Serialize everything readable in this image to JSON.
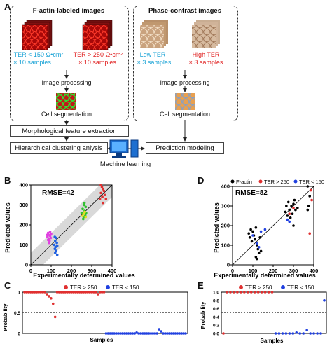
{
  "panel_a": {
    "letter": "A",
    "left_box": {
      "title": "F-actin-labeled images",
      "low_label": "TER < 150 Ω•cm²",
      "low_count": "× 10 samples",
      "high_label": "TER > 250 Ω•cm²",
      "high_count": "× 10 samples",
      "processing": "Image processing",
      "segmentation": "Cell segmentation"
    },
    "right_box": {
      "title": "Phase-contrast images",
      "low_label": "Low TER",
      "low_count": "× 3 samples",
      "high_label": "High TER",
      "high_count": "× 3 samples",
      "processing": "Image processing",
      "segmentation": "Cell segmentation"
    },
    "morph": "Morphological feature extraction",
    "cluster": "Hierarchical clustering anlysis",
    "prediction": "Prediction modeling",
    "ml": "Machine learning",
    "colors": {
      "blue_text": "#1aa3d6",
      "red_text": "#e02020",
      "actin_red": "#c81010",
      "phase_tan": "#c8a07a"
    }
  },
  "panel_b": {
    "letter": "B",
    "rmse": "RMSE=42",
    "xlabel": "Experimentally determined values",
    "ylabel": "Predicted values"
  },
  "panel_c": {
    "letter": "C",
    "legend_red": "TER > 250",
    "legend_blue": "TER < 150",
    "xlabel": "Samples",
    "ylabel": "Probability"
  },
  "panel_d": {
    "letter": "D",
    "legend_black": "F-actin",
    "legend_red": "TER > 250",
    "legend_blue": "TER < 150",
    "rmse": "RMSE=82",
    "xlabel": "Experimentally determined values",
    "ylabel": "Predicted values"
  },
  "panel_e": {
    "letter": "E",
    "legend_red": "TER > 250",
    "legend_blue": "TER < 150",
    "xlabel": "Samples",
    "ylabel": "Probability"
  },
  "chart_data": [
    {
      "type": "scatter",
      "panel": "B",
      "xlim": [
        0,
        400
      ],
      "ylim": [
        0,
        400
      ],
      "xticks": [
        0,
        100,
        200,
        300,
        400
      ],
      "yticks": [
        0,
        100,
        200,
        300,
        400
      ],
      "series": [
        {
          "color": "#e040e0",
          "points": [
            [
              80,
              150
            ],
            [
              82,
              140
            ],
            [
              85,
              160
            ],
            [
              88,
              130
            ],
            [
              90,
              150
            ],
            [
              92,
              120
            ],
            [
              95,
              145
            ],
            [
              98,
              135
            ],
            [
              100,
              155
            ],
            [
              85,
              125
            ],
            [
              90,
              110
            ],
            [
              95,
              165
            ]
          ]
        },
        {
          "color": "#2060e0",
          "points": [
            [
              115,
              100
            ],
            [
              118,
              80
            ],
            [
              120,
              60
            ],
            [
              122,
              90
            ],
            [
              125,
              70
            ],
            [
              128,
              110
            ],
            [
              130,
              50
            ],
            [
              120,
              120
            ],
            [
              125,
              135
            ],
            [
              118,
              140
            ],
            [
              130,
              95
            ]
          ]
        },
        {
          "color": "#30c030",
          "points": [
            [
              250,
              260
            ],
            [
              255,
              280
            ],
            [
              260,
              240
            ],
            [
              262,
              300
            ],
            [
              265,
              270
            ],
            [
              268,
              250
            ],
            [
              270,
              290
            ],
            [
              258,
              230
            ],
            [
              264,
              310
            ],
            [
              272,
              260
            ]
          ]
        },
        {
          "color": "#e0e020",
          "points": [
            [
              255,
              245
            ],
            [
              260,
              255
            ],
            [
              266,
              265
            ],
            [
              270,
              240
            ]
          ]
        },
        {
          "color": "#e03030",
          "points": [
            [
              340,
              330
            ],
            [
              345,
              360
            ],
            [
              350,
              390
            ],
            [
              352,
              340
            ],
            [
              355,
              310
            ],
            [
              360,
              370
            ],
            [
              365,
              350
            ],
            [
              370,
              330
            ],
            [
              345,
              400
            ],
            [
              355,
              380
            ]
          ]
        }
      ],
      "band_color": "#d9d9d9"
    },
    {
      "type": "scatter",
      "panel": "C",
      "ylim": [
        0,
        1
      ],
      "yticks": [
        0,
        0.5,
        1
      ],
      "threshold": 0.5,
      "series": [
        {
          "name": "TER > 250",
          "color": "#e03030",
          "values": [
            1,
            1,
            1,
            1,
            1,
            1,
            1,
            1,
            1,
            1,
            1,
            0.95,
            0.9,
            0.85,
            0.72,
            0.4,
            1,
            1,
            1,
            1,
            1,
            1,
            1,
            1,
            1,
            1,
            1,
            1,
            1,
            1,
            1,
            1,
            1,
            1,
            1,
            1,
            0.95,
            1,
            1,
            1
          ]
        },
        {
          "name": "TER < 150",
          "color": "#2040e0",
          "values": [
            0,
            0,
            0,
            0,
            0,
            0,
            0,
            0,
            0,
            0,
            0,
            0,
            0,
            0,
            0,
            0.02,
            0,
            0,
            0,
            0,
            0,
            0,
            0,
            0,
            0,
            0,
            0.1,
            0.05,
            0,
            0,
            0,
            0,
            0,
            0,
            0,
            0,
            0,
            0,
            0,
            0
          ]
        }
      ]
    },
    {
      "type": "scatter",
      "panel": "D",
      "xlim": [
        0,
        400
      ],
      "ylim": [
        0,
        400
      ],
      "xticks": [
        0,
        100,
        200,
        300,
        400
      ],
      "yticks": [
        0,
        100,
        200,
        300,
        400
      ],
      "series": [
        {
          "name": "F-actin",
          "color": "#000000",
          "points": [
            [
              80,
              160
            ],
            [
              85,
              140
            ],
            [
              90,
              180
            ],
            [
              95,
              120
            ],
            [
              100,
              170
            ],
            [
              105,
              150
            ],
            [
              110,
              130
            ],
            [
              115,
              190
            ],
            [
              120,
              100
            ],
            [
              125,
              80
            ],
            [
              130,
              60
            ],
            [
              115,
              40
            ],
            [
              120,
              30
            ],
            [
              135,
              140
            ],
            [
              140,
              70
            ],
            [
              260,
              270
            ],
            [
              265,
              300
            ],
            [
              270,
              250
            ],
            [
              275,
              320
            ],
            [
              280,
              280
            ],
            [
              285,
              240
            ],
            [
              290,
              300
            ],
            [
              295,
              260
            ],
            [
              300,
              310
            ],
            [
              305,
              330
            ],
            [
              310,
              280
            ],
            [
              300,
              200
            ],
            [
              320,
              290
            ],
            [
              370,
              400
            ],
            [
              380,
              350
            ],
            [
              375,
              300
            ],
            [
              370,
              280
            ]
          ]
        },
        {
          "name": "TER > 250",
          "color": "#e03030",
          "points": [
            [
              380,
              160
            ],
            [
              385,
              380
            ],
            [
              390,
              330
            ],
            [
              280,
              260
            ],
            [
              300,
              290
            ]
          ]
        },
        {
          "name": "TER < 150",
          "color": "#2040e0",
          "points": [
            [
              100,
              150
            ],
            [
              120,
              110
            ],
            [
              140,
              170
            ],
            [
              160,
              180
            ],
            [
              130,
              90
            ],
            [
              270,
              230
            ],
            [
              280,
              220
            ]
          ]
        }
      ]
    },
    {
      "type": "scatter",
      "panel": "E",
      "ylim": [
        0,
        1
      ],
      "yticks": [
        0,
        0.2,
        0.4,
        0.6,
        0.8,
        1.0
      ],
      "threshold": 0.5,
      "series": [
        {
          "name": "TER > 250",
          "color": "#e03030",
          "values": [
            0,
            1,
            1,
            1,
            1,
            1,
            1,
            1,
            1,
            1,
            1,
            1,
            1,
            1,
            1
          ]
        },
        {
          "name": "TER < 150",
          "color": "#2040e0",
          "values": [
            0,
            0,
            0,
            0,
            0,
            0,
            0.02,
            0,
            0,
            0.08,
            0,
            0,
            0,
            0,
            0.8
          ]
        }
      ]
    }
  ]
}
